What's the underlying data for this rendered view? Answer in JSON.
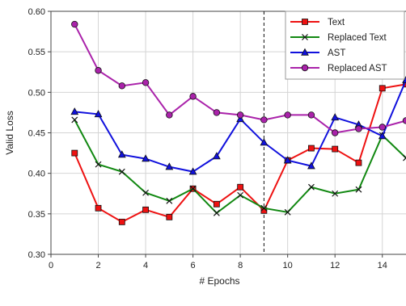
{
  "chart_data": {
    "type": "line",
    "title": "",
    "xlabel": "# Epochs",
    "ylabel": "Valid Loss",
    "xlim": [
      0,
      15
    ],
    "ylim": [
      0.3,
      0.6
    ],
    "x_ticks": [
      "0",
      "2",
      "4",
      "6",
      "8",
      "10",
      "12",
      "14"
    ],
    "y_ticks": [
      "0.30",
      "0.35",
      "0.40",
      "0.45",
      "0.50",
      "0.55",
      "0.60"
    ],
    "grid": true,
    "legend_position": "top-right",
    "vertical_line_x": 9,
    "x": [
      1,
      2,
      3,
      4,
      5,
      6,
      7,
      8,
      9,
      10,
      11,
      12,
      13,
      14,
      15
    ],
    "series": [
      {
        "name": "Text",
        "color": "#ee1111",
        "marker": "square",
        "values": [
          0.425,
          0.357,
          0.34,
          0.355,
          0.346,
          0.381,
          0.362,
          0.383,
          0.354,
          0.416,
          0.431,
          0.43,
          0.413,
          0.505,
          0.51
        ]
      },
      {
        "name": "Replaced Text",
        "color": "#118811",
        "marker": "x",
        "values": [
          0.466,
          0.411,
          0.402,
          0.376,
          0.366,
          0.381,
          0.351,
          0.373,
          0.357,
          0.352,
          0.383,
          0.375,
          0.38,
          0.447,
          0.419
        ]
      },
      {
        "name": "AST",
        "color": "#1111dd",
        "marker": "triangle",
        "values": [
          0.476,
          0.473,
          0.423,
          0.418,
          0.408,
          0.402,
          0.421,
          0.467,
          0.438,
          0.416,
          0.409,
          0.469,
          0.46,
          0.446,
          0.515
        ]
      },
      {
        "name": "Replaced AST",
        "color": "#aa22aa",
        "marker": "circle",
        "values": [
          0.584,
          0.527,
          0.508,
          0.512,
          0.472,
          0.495,
          0.475,
          0.472,
          0.466,
          0.472,
          0.472,
          0.45,
          0.455,
          0.457,
          0.465
        ]
      }
    ]
  }
}
